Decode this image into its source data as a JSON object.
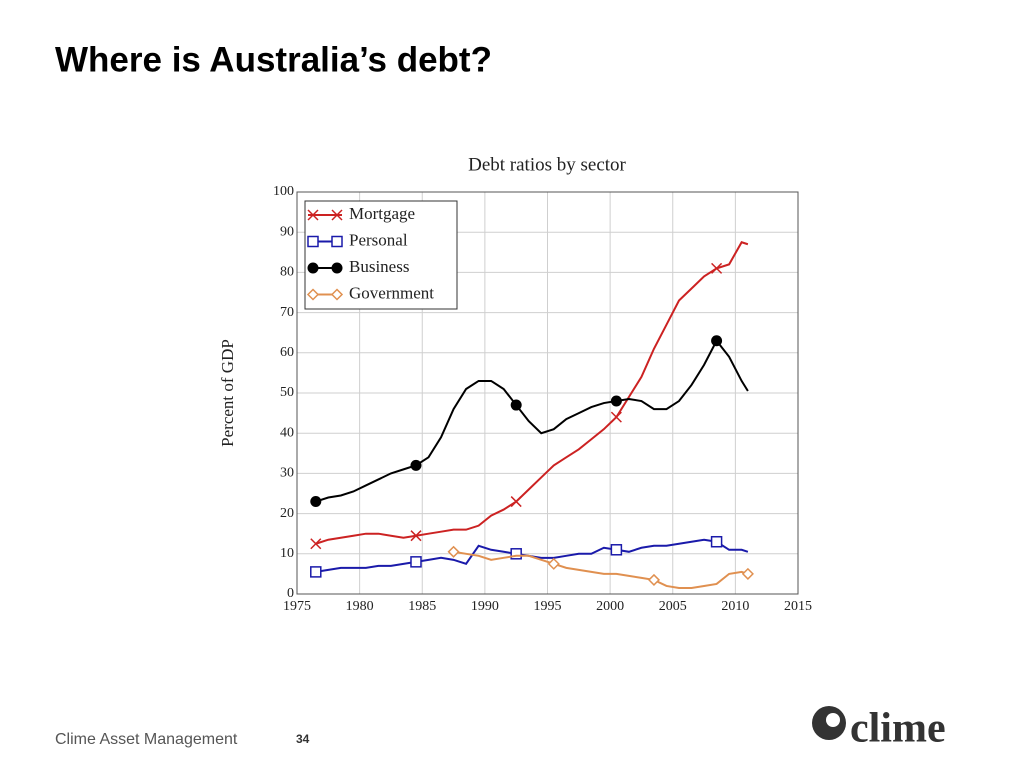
{
  "header": {
    "title": "Where is Australia’s debt?"
  },
  "footer": {
    "company": "Clime Asset Management",
    "page": "34",
    "logo": "clime"
  },
  "chart_data": {
    "type": "line",
    "title": "Debt ratios by sector",
    "ylabel": "Percent of GDP",
    "x": [
      1976.5,
      1977.5,
      1978.5,
      1979.5,
      1980.5,
      1981.5,
      1982.5,
      1983.5,
      1984.5,
      1985.5,
      1986.5,
      1987.5,
      1988.5,
      1989.5,
      1990.5,
      1991.5,
      1992.5,
      1993.5,
      1994.5,
      1995.5,
      1996.5,
      1997.5,
      1998.5,
      1999.5,
      2000.5,
      2001.5,
      2002.5,
      2003.5,
      2004.5,
      2005.5,
      2006.5,
      2007.5,
      2008.5,
      2009.5,
      2010.5,
      2011
    ],
    "series": [
      {
        "name": "Mortgage",
        "color": "#cc2222",
        "marker": "x",
        "values": [
          12.5,
          13.5,
          14,
          14.5,
          15,
          15,
          14.5,
          14,
          14.5,
          15,
          15.5,
          16,
          16,
          17,
          19.5,
          21,
          23,
          26,
          29,
          32,
          34,
          36,
          38.5,
          41,
          44,
          49,
          54,
          61,
          67,
          73,
          76,
          79,
          81,
          82,
          87.5,
          87
        ]
      },
      {
        "name": "Personal",
        "color": "#1a1aaa",
        "marker": "square",
        "values": [
          5.5,
          6,
          6.5,
          6.5,
          6.5,
          7,
          7,
          7.5,
          8,
          8.5,
          9,
          8.5,
          7.5,
          12,
          11,
          10.5,
          10,
          9.5,
          9,
          9,
          9.5,
          10,
          10,
          11.5,
          11,
          10.5,
          11.5,
          12,
          12,
          12.5,
          13,
          13.5,
          13,
          11,
          11,
          10.5
        ]
      },
      {
        "name": "Business",
        "color": "#000000",
        "marker": "circle",
        "values": [
          23,
          24,
          24.5,
          25.5,
          27,
          28.5,
          30,
          31,
          32,
          34,
          39,
          46,
          51,
          53,
          53,
          51,
          47,
          43,
          40,
          41,
          43.5,
          45,
          46.5,
          47.5,
          48,
          48.5,
          48,
          46,
          46,
          48,
          52,
          57,
          63,
          59,
          53,
          50.5
        ]
      },
      {
        "name": "Government",
        "color": "#e09050",
        "marker": "diamond",
        "values": [
          null,
          null,
          null,
          null,
          null,
          null,
          null,
          null,
          null,
          null,
          null,
          10.5,
          10,
          9.5,
          8.5,
          9,
          9.5,
          9.5,
          8.5,
          7.5,
          6.5,
          6,
          5.5,
          5,
          5,
          4.5,
          4,
          3.5,
          2,
          1.5,
          1.5,
          2,
          2.5,
          5,
          5.5,
          5
        ]
      }
    ],
    "xlim": [
      1975,
      2015
    ],
    "xticks": [
      1975,
      1980,
      1985,
      1990,
      1995,
      2000,
      2005,
      2010,
      2015
    ],
    "ylim": [
      0,
      100
    ],
    "yticks": [
      0,
      10,
      20,
      30,
      40,
      50,
      60,
      70,
      80,
      90,
      100
    ],
    "grid": true,
    "legend": "upper-left"
  }
}
